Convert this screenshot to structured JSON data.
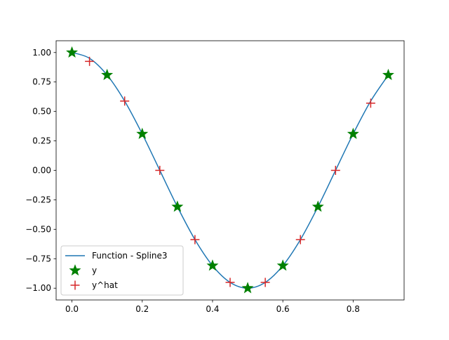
{
  "chart_data": {
    "type": "line",
    "title": "",
    "xlabel": "",
    "ylabel": "",
    "xlim": [
      -0.045,
      0.945
    ],
    "ylim": [
      -1.1,
      1.1
    ],
    "xticks": [
      0.0,
      0.2,
      0.4,
      0.6,
      0.8
    ],
    "xtick_labels": [
      "0.0",
      "0.2",
      "0.4",
      "0.6",
      "0.8"
    ],
    "yticks": [
      -1.0,
      -0.75,
      -0.5,
      -0.25,
      0.0,
      0.25,
      0.5,
      0.75,
      1.0
    ],
    "ytick_labels": [
      "−1.00",
      "−0.75",
      "−0.50",
      "−0.25",
      "0.00",
      "0.25",
      "0.50",
      "0.75",
      "1.00"
    ],
    "grid": false,
    "legend_position": "lower-left",
    "series": [
      {
        "name": "Function - Spline3",
        "kind": "line",
        "color": "#1f77b4",
        "x": [
          0.0,
          0.05,
          0.1,
          0.15,
          0.2,
          0.25,
          0.3,
          0.35,
          0.4,
          0.45,
          0.5,
          0.55,
          0.6,
          0.65,
          0.7,
          0.75,
          0.8,
          0.85,
          0.9
        ],
        "y": [
          1.0,
          0.951,
          0.809,
          0.588,
          0.309,
          0.0,
          -0.309,
          -0.588,
          -0.809,
          -0.951,
          -1.0,
          -0.951,
          -0.809,
          -0.588,
          -0.309,
          0.0,
          0.309,
          0.588,
          0.809
        ]
      },
      {
        "name": "y",
        "kind": "scatter",
        "marker": "star",
        "color": "#008000",
        "x": [
          0.0,
          0.1,
          0.2,
          0.3,
          0.4,
          0.5,
          0.6,
          0.7,
          0.8,
          0.9
        ],
        "y": [
          1.0,
          0.809,
          0.309,
          -0.309,
          -0.809,
          -1.0,
          -0.809,
          -0.309,
          0.309,
          0.809
        ]
      },
      {
        "name": "y^hat",
        "kind": "scatter",
        "marker": "plus",
        "color": "#d62728",
        "x": [
          0.05,
          0.15,
          0.25,
          0.35,
          0.45,
          0.55,
          0.65,
          0.75,
          0.85
        ],
        "y": [
          0.925,
          0.588,
          0.0,
          -0.588,
          -0.951,
          -0.951,
          -0.588,
          0.0,
          0.57
        ]
      }
    ]
  }
}
